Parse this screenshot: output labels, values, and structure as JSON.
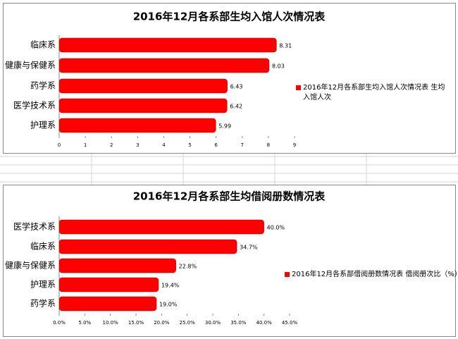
{
  "chart_data": [
    {
      "type": "bar",
      "orientation": "horizontal",
      "title": "2016年12月各系部生均入馆人次情况表",
      "categories": [
        "临床系",
        "健康与保健系",
        "药学系",
        "医学技术系",
        "护理系"
      ],
      "series": [
        {
          "name": "2016年12月各系部生均入馆人次情况表 生均入馆人次",
          "color": "#ff0000",
          "values": [
            8.31,
            8.03,
            6.43,
            6.42,
            5.99
          ]
        }
      ],
      "xlim": [
        0,
        9
      ],
      "xticks": [
        0,
        1,
        2,
        3,
        4,
        5,
        6,
        7,
        8,
        9
      ],
      "legend": "right"
    },
    {
      "type": "bar",
      "orientation": "horizontal",
      "title": "2016年12月各系部生均借阅册数情况表",
      "categories": [
        "医学技术系",
        "临床系",
        "健康与保健系",
        "护理系",
        "药学系"
      ],
      "series": [
        {
          "name": "2016年12月各系部借阅册数情况表 借阅册次比（%）",
          "color": "#ff0000",
          "values": [
            40.0,
            34.7,
            22.8,
            19.4,
            19.0
          ],
          "value_labels": [
            "40.0%",
            "34.7%",
            "22.8%",
            "19.4%",
            "19.0%"
          ]
        }
      ],
      "xlim": [
        0,
        45
      ],
      "xticks": [
        {
          "value": 0,
          "label": "0.0%"
        },
        {
          "value": 5,
          "label": "5.0%"
        },
        {
          "value": 10,
          "label": "10.0%"
        },
        {
          "value": 15,
          "label": "15.0%"
        },
        {
          "value": 20,
          "label": "20.0%"
        },
        {
          "value": 25,
          "label": "25.0%"
        },
        {
          "value": 30,
          "label": "30.0%"
        },
        {
          "value": 35,
          "label": "35.0%"
        },
        {
          "value": 40,
          "label": "40.0%"
        },
        {
          "value": 45,
          "label": "45.0%"
        }
      ],
      "legend": "right"
    }
  ]
}
